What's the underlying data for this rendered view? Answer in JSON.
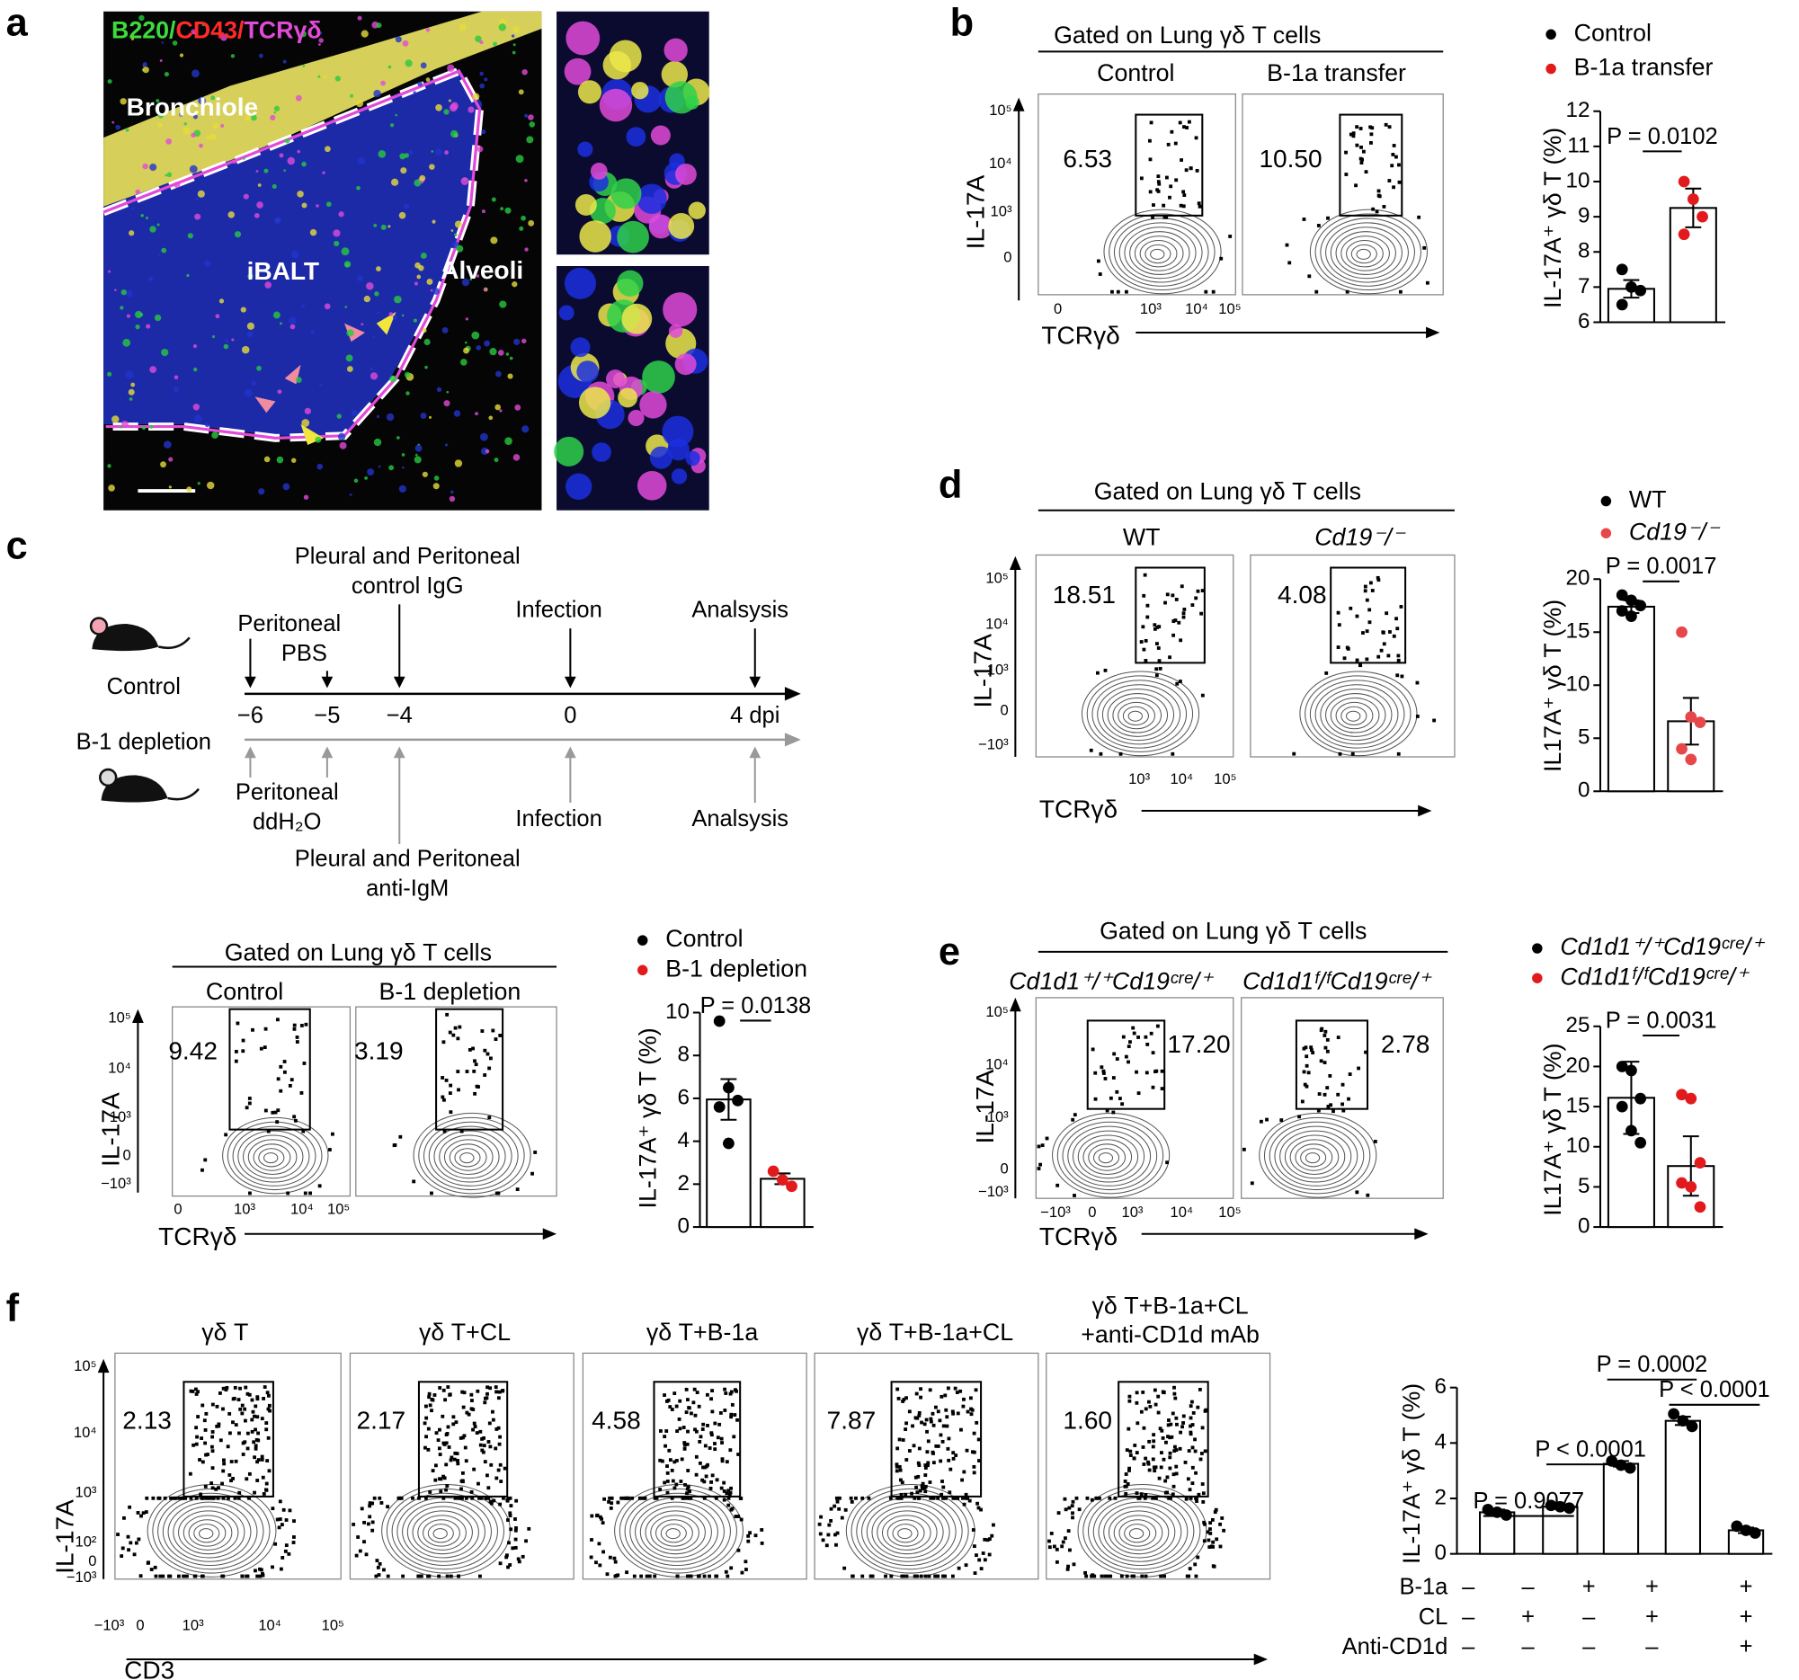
{
  "panels": {
    "a": {
      "letter": "a",
      "legend": [
        "B220/",
        "CD43/",
        "TCRγδ"
      ],
      "labels": [
        "Bronchiole",
        "iBALT",
        "Alveoli"
      ]
    },
    "b": {
      "letter": "b",
      "flow": {
        "header": "Gated on Lung γδ T cells",
        "titles": [
          "Control",
          "B-1a transfer"
        ],
        "gates": [
          "6.53",
          "10.50"
        ],
        "y_label": "IL-17A",
        "x_label": "TCRγδ",
        "yticks": [
          "10⁵",
          "10⁴",
          "10³",
          "0"
        ],
        "xticks": [
          "0",
          "10³",
          "10⁴",
          "10⁵"
        ]
      }
    },
    "c": {
      "letter": "c",
      "timeline": {
        "groups": [
          "Control",
          "B-1 depletion"
        ],
        "days": [
          "−6",
          "−5",
          "−4",
          "0",
          "4 dpi"
        ],
        "top": [
          "Pleural and Peritoneal",
          "control IgG",
          "Peritoneal",
          "PBS",
          "Infection",
          "Analsysis"
        ],
        "bottom": [
          "Peritoneal",
          "ddH₂O",
          "Infection",
          "Analsysis",
          "Pleural and Peritoneal",
          "anti-IgM"
        ]
      },
      "flow": {
        "header": "Gated on Lung γδ T cells",
        "titles": [
          "Control",
          "B-1 depletion"
        ],
        "gates": [
          "9.42",
          "3.19"
        ],
        "y_label": "IL-17A",
        "x_label": "TCRγδ",
        "yticks": [
          "10⁵",
          "10⁴",
          "10³",
          "0",
          "−10³"
        ],
        "xticks": [
          "0",
          "10³",
          "10⁴",
          "10⁵"
        ]
      }
    },
    "d": {
      "letter": "d",
      "flow": {
        "header": "Gated on Lung γδ T cells",
        "titles": [
          "WT",
          "Cd19⁻/⁻"
        ],
        "gates": [
          "18.51",
          "4.08"
        ],
        "y_label": "IL-17A",
        "x_label": "TCRγδ",
        "yticks": [
          "10⁵",
          "10⁴",
          "10³",
          "0",
          "−10³"
        ],
        "xticks": [
          "10³",
          "10⁴",
          "10⁵"
        ]
      }
    },
    "e": {
      "letter": "e",
      "flow": {
        "header": "Gated on Lung γδ T cells",
        "titles": [
          "Cd1d1⁺/⁺Cd19ᶜʳᵉ/⁺",
          "Cd1d1ᶠ/ᶠCd19ᶜʳᵉ/⁺"
        ],
        "gates": [
          "17.20",
          "2.78"
        ],
        "y_label": "IL-17A",
        "x_label": "TCRγδ",
        "yticks": [
          "10⁵",
          "10⁴",
          "10³",
          "0",
          "−10³"
        ],
        "xticks": [
          "−10³",
          "0",
          "10³",
          "10⁴",
          "10⁵"
        ]
      }
    },
    "f": {
      "letter": "f",
      "flow": {
        "titles": [
          "γδ T",
          "γδ T+CL",
          "γδ T+B-1a",
          "γδ T+B-1a+CL",
          "γδ T+B-1a+CL",
          "+anti-CD1d mAb"
        ],
        "gates": [
          "2.13",
          "2.17",
          "4.58",
          "7.87",
          "1.60"
        ],
        "y_label": "IL-17A",
        "x_label": "CD3",
        "yticks": [
          "10⁵",
          "10⁴",
          "10³",
          "10²",
          "0",
          "−10³"
        ],
        "xticks": [
          "−10³",
          "0",
          "10³",
          "10⁴",
          "10⁵"
        ]
      }
    }
  },
  "chart_data": [
    {
      "type": "bar",
      "y_label": "IL-17A⁺ γδ T (%)",
      "ylim": [
        6,
        12
      ],
      "yticks": [
        6,
        7,
        8,
        9,
        10,
        11,
        12
      ],
      "bar_color": "#ffffff",
      "series": [
        {
          "name": "Control",
          "color": "#000000",
          "values": [
            6.95
          ],
          "errors": [
            0.25
          ],
          "points": [
            7.5,
            7.0,
            6.9,
            6.5
          ]
        },
        {
          "name": "B-1a transfer",
          "color": "#e31a1c",
          "values": [
            9.25
          ],
          "errors": [
            0.55
          ],
          "points": [
            10.0,
            9.5,
            9.0,
            8.5
          ]
        }
      ],
      "annotations": [
        "P = 0.0102"
      ]
    },
    {
      "type": "bar",
      "y_label": "IL-17A⁺ γδ T (%)",
      "ylim": [
        0,
        10
      ],
      "yticks": [
        0,
        2,
        4,
        6,
        8,
        10
      ],
      "bar_color": "#ffffff",
      "series": [
        {
          "name": "Control",
          "color": "#000000",
          "values": [
            5.95
          ],
          "errors": [
            0.95
          ],
          "points": [
            9.6,
            6.5,
            5.9,
            5.6,
            3.9
          ]
        },
        {
          "name": "B-1 depletion",
          "color": "#e31a1c",
          "values": [
            2.25
          ],
          "errors": [
            0.25
          ],
          "points": [
            2.6,
            2.2,
            1.9
          ]
        }
      ],
      "annotations": [
        "P = 0.0138"
      ]
    },
    {
      "type": "bar",
      "y_label": "IL17A⁺ γδ T (%)",
      "ylim": [
        0,
        20
      ],
      "yticks": [
        0,
        5,
        10,
        15,
        20
      ],
      "bar_color": "#ffffff",
      "series": [
        {
          "name": "WT",
          "color": "#000000",
          "values": [
            17.4
          ],
          "errors": [
            0.6
          ],
          "points": [
            18.5,
            18.0,
            17.5,
            17.0,
            16.5
          ]
        },
        {
          "name": "Cd19⁻/⁻",
          "color": "#e8474a",
          "values": [
            6.6
          ],
          "errors": [
            2.2
          ],
          "points": [
            15.0,
            7.0,
            6.5,
            4.0,
            3.0
          ]
        }
      ],
      "annotations": [
        "P = 0.0017"
      ]
    },
    {
      "type": "bar",
      "y_label": "IL17A⁺ γδ T (%)",
      "ylim": [
        0,
        25
      ],
      "yticks": [
        0,
        5,
        10,
        15,
        20,
        25
      ],
      "bar_color": "#ffffff",
      "series": [
        {
          "name": "Cd1d1⁺/⁺Cd19ᶜʳᵉ/⁺",
          "color": "#000000",
          "values": [
            16.1
          ],
          "errors": [
            4.5
          ],
          "points": [
            20.0,
            19.5,
            16.0,
            15.0,
            12.0,
            10.5
          ]
        },
        {
          "name": "Cd1d1ᶠ/ᶠCd19ᶜʳᵉ/⁺",
          "color": "#e31a1c",
          "values": [
            7.6
          ],
          "errors": [
            3.7
          ],
          "points": [
            16.5,
            16.0,
            8.0,
            5.5,
            5.0,
            2.5
          ]
        }
      ],
      "annotations": [
        "P = 0.0031"
      ]
    },
    {
      "type": "bar",
      "y_label": "IL-17A⁺ γδ T (%)",
      "ylim": [
        0,
        6
      ],
      "yticks": [
        0,
        2,
        4,
        6
      ],
      "bar_color": "#ffffff",
      "color": "#000000",
      "values": [
        1.5,
        1.7,
        3.25,
        4.8,
        0.85
      ],
      "errors": [
        0.1,
        0.08,
        0.1,
        0.15,
        0.1
      ],
      "points": [
        [
          1.6,
          1.5,
          1.4
        ],
        [
          1.75,
          1.7,
          1.65
        ],
        [
          3.35,
          3.2,
          3.1
        ],
        [
          5.05,
          4.8,
          4.6
        ],
        [
          1.0,
          0.85,
          0.75
        ]
      ],
      "annotations": [
        "P = 0.9077",
        "P < 0.0001",
        "P = 0.0002",
        "P < 0.0001"
      ],
      "conditions": [
        {
          "name": "B-1a",
          "marks": [
            "–",
            "–",
            "+",
            "+",
            "+"
          ]
        },
        {
          "name": "CL",
          "marks": [
            "–",
            "+",
            "–",
            "+",
            "+"
          ]
        },
        {
          "name": "Anti-CD1d",
          "marks": [
            "–",
            "–",
            "–",
            "–",
            "+"
          ]
        }
      ]
    }
  ]
}
